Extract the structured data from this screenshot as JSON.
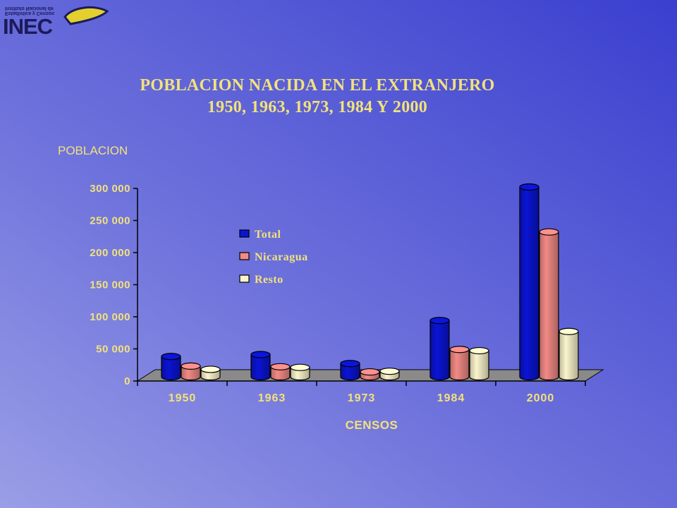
{
  "logo": {
    "brand": "INEC",
    "mirrored_line_1": "Instituto Nacional de",
    "mirrored_line_2": "Estadística y Censos"
  },
  "colors": {
    "text": "#f2e27a",
    "floor": "#8a8a8a",
    "axis": "#000000"
  },
  "chart_data": {
    "type": "bar",
    "title_line_1": "POBLACION NACIDA EN EL EXTRANJERO",
    "title_line_2": "1950, 1963, 1973, 1984 Y 2000",
    "ylabel": "POBLACION",
    "xlabel": "CENSOS",
    "categories": [
      "1950",
      "1963",
      "1973",
      "1984",
      "2000"
    ],
    "series": [
      {
        "name": "Total",
        "color": "#0a14d4",
        "values": [
          36000,
          39000,
          25000,
          92000,
          300000
        ]
      },
      {
        "name": "Nicaragua",
        "color": "#f28a86",
        "values": [
          21000,
          20000,
          12000,
          47000,
          230000
        ]
      },
      {
        "name": "Resto",
        "color": "#fbf5cc",
        "values": [
          16000,
          19000,
          13000,
          45000,
          75000
        ]
      }
    ],
    "ylim": [
      0,
      300000
    ],
    "yticks": [
      "0",
      "50 000",
      "100 000",
      "150 000",
      "200 000",
      "250 000",
      "300 000"
    ],
    "legend_position": "center-left",
    "grid": false
  }
}
